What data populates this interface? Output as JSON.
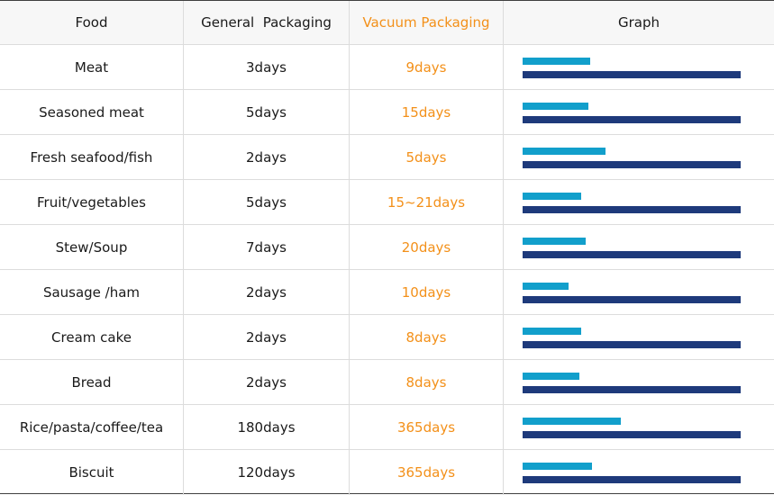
{
  "table": {
    "headers": {
      "food": "Food",
      "general": "General  Packaging",
      "vacuum": "Vacuum Packaging",
      "graph": "Graph"
    },
    "rows": [
      {
        "food": "Meat",
        "general": "3days",
        "vacuum": "9days"
      },
      {
        "food": "Seasoned meat",
        "general": "5days",
        "vacuum": "15days"
      },
      {
        "food": "Fresh seafood/fish",
        "general": "2days",
        "vacuum": "5days"
      },
      {
        "food": "Fruit/vegetables",
        "general": "5days",
        "vacuum": "15~21days"
      },
      {
        "food": "Stew/Soup",
        "general": "7days",
        "vacuum": "20days"
      },
      {
        "food": "Sausage /ham",
        "general": "2days",
        "vacuum": "10days"
      },
      {
        "food": "Cream cake",
        "general": "2days",
        "vacuum": "8days"
      },
      {
        "food": "Bread",
        "general": "2days",
        "vacuum": "8days"
      },
      {
        "food": "Rice/pasta/coffee/tea",
        "general": "180days",
        "vacuum": "365days"
      },
      {
        "food": "Biscuit",
        "general": "120days",
        "vacuum": "365days"
      }
    ]
  },
  "chart_data": {
    "type": "bar",
    "categories": [
      "Meat",
      "Seasoned meat",
      "Fresh seafood/fish",
      "Fruit/vegetables",
      "Stew/Soup",
      "Sausage /ham",
      "Cream cake",
      "Bread",
      "Rice/pasta/coffee/tea",
      "Biscuit"
    ],
    "series": [
      {
        "values": [
          0.31,
          0.3,
          0.38,
          0.27,
          0.29,
          0.21,
          0.27,
          0.26,
          0.45,
          0.32
        ],
        "color": "#129fcb"
      },
      {
        "values": [
          1,
          1,
          1,
          1,
          1,
          1,
          1,
          1,
          1,
          1
        ],
        "color": "#1e3a7b"
      }
    ],
    "ylim": [
      0,
      1
    ],
    "grid": false
  },
  "colors": {
    "vacuum_text": "#f39019",
    "general_bar": "#129fcb",
    "vacuum_bar": "#1e3a7b",
    "header_bg": "#f7f7f7",
    "border": "#dcdcdc"
  }
}
